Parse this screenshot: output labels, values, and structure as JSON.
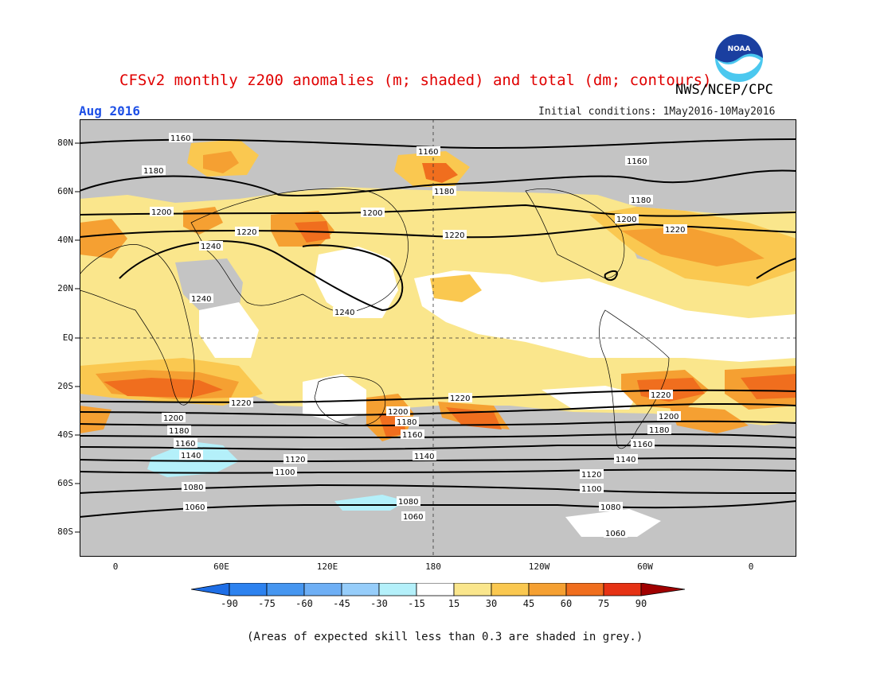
{
  "header": {
    "title": "CFSv2 monthly z200 anomalies (m; shaded) and total (dm; contours)",
    "agency": "NWS/NCEP/CPC",
    "valid_month": "Aug 2016",
    "initial_conditions": "Initial conditions: 1May2016-10May2016",
    "logo_text": "NOAA"
  },
  "axes": {
    "lat_labels": [
      "80N",
      "60N",
      "40N",
      "20N",
      "EQ",
      "20S",
      "40S",
      "60S",
      "80S"
    ],
    "lon_labels": [
      "0",
      "60E",
      "120E",
      "180",
      "120W",
      "60W",
      "0"
    ]
  },
  "contour_labels": [
    "1160",
    "1180",
    "1200",
    "1220",
    "1240",
    "1140",
    "1120",
    "1100",
    "1080",
    "1060"
  ],
  "colorbar": {
    "ticks": [
      "-90",
      "-75",
      "-60",
      "-45",
      "-30",
      "-15",
      "15",
      "30",
      "45",
      "60",
      "75",
      "90"
    ],
    "colors": [
      "#1e6ee6",
      "#2d82ef",
      "#4696f0",
      "#6eaff5",
      "#96cdfa",
      "#b4f0fa",
      "#ffffff",
      "#fae68c",
      "#fac850",
      "#f5a032",
      "#f06e1e",
      "#e63214",
      "#c80a0a",
      "#a00000"
    ]
  },
  "shading": {
    "grey": "#c4c4c4",
    "light_yellow": "#fae68c",
    "yellow_orange": "#fac850",
    "orange": "#f5a032",
    "dark_orange": "#f06e1e",
    "red": "#e63214",
    "light_blue": "#b4f0fa"
  },
  "footer": "(Areas of expected skill less than 0.3 are shaded in grey.)"
}
